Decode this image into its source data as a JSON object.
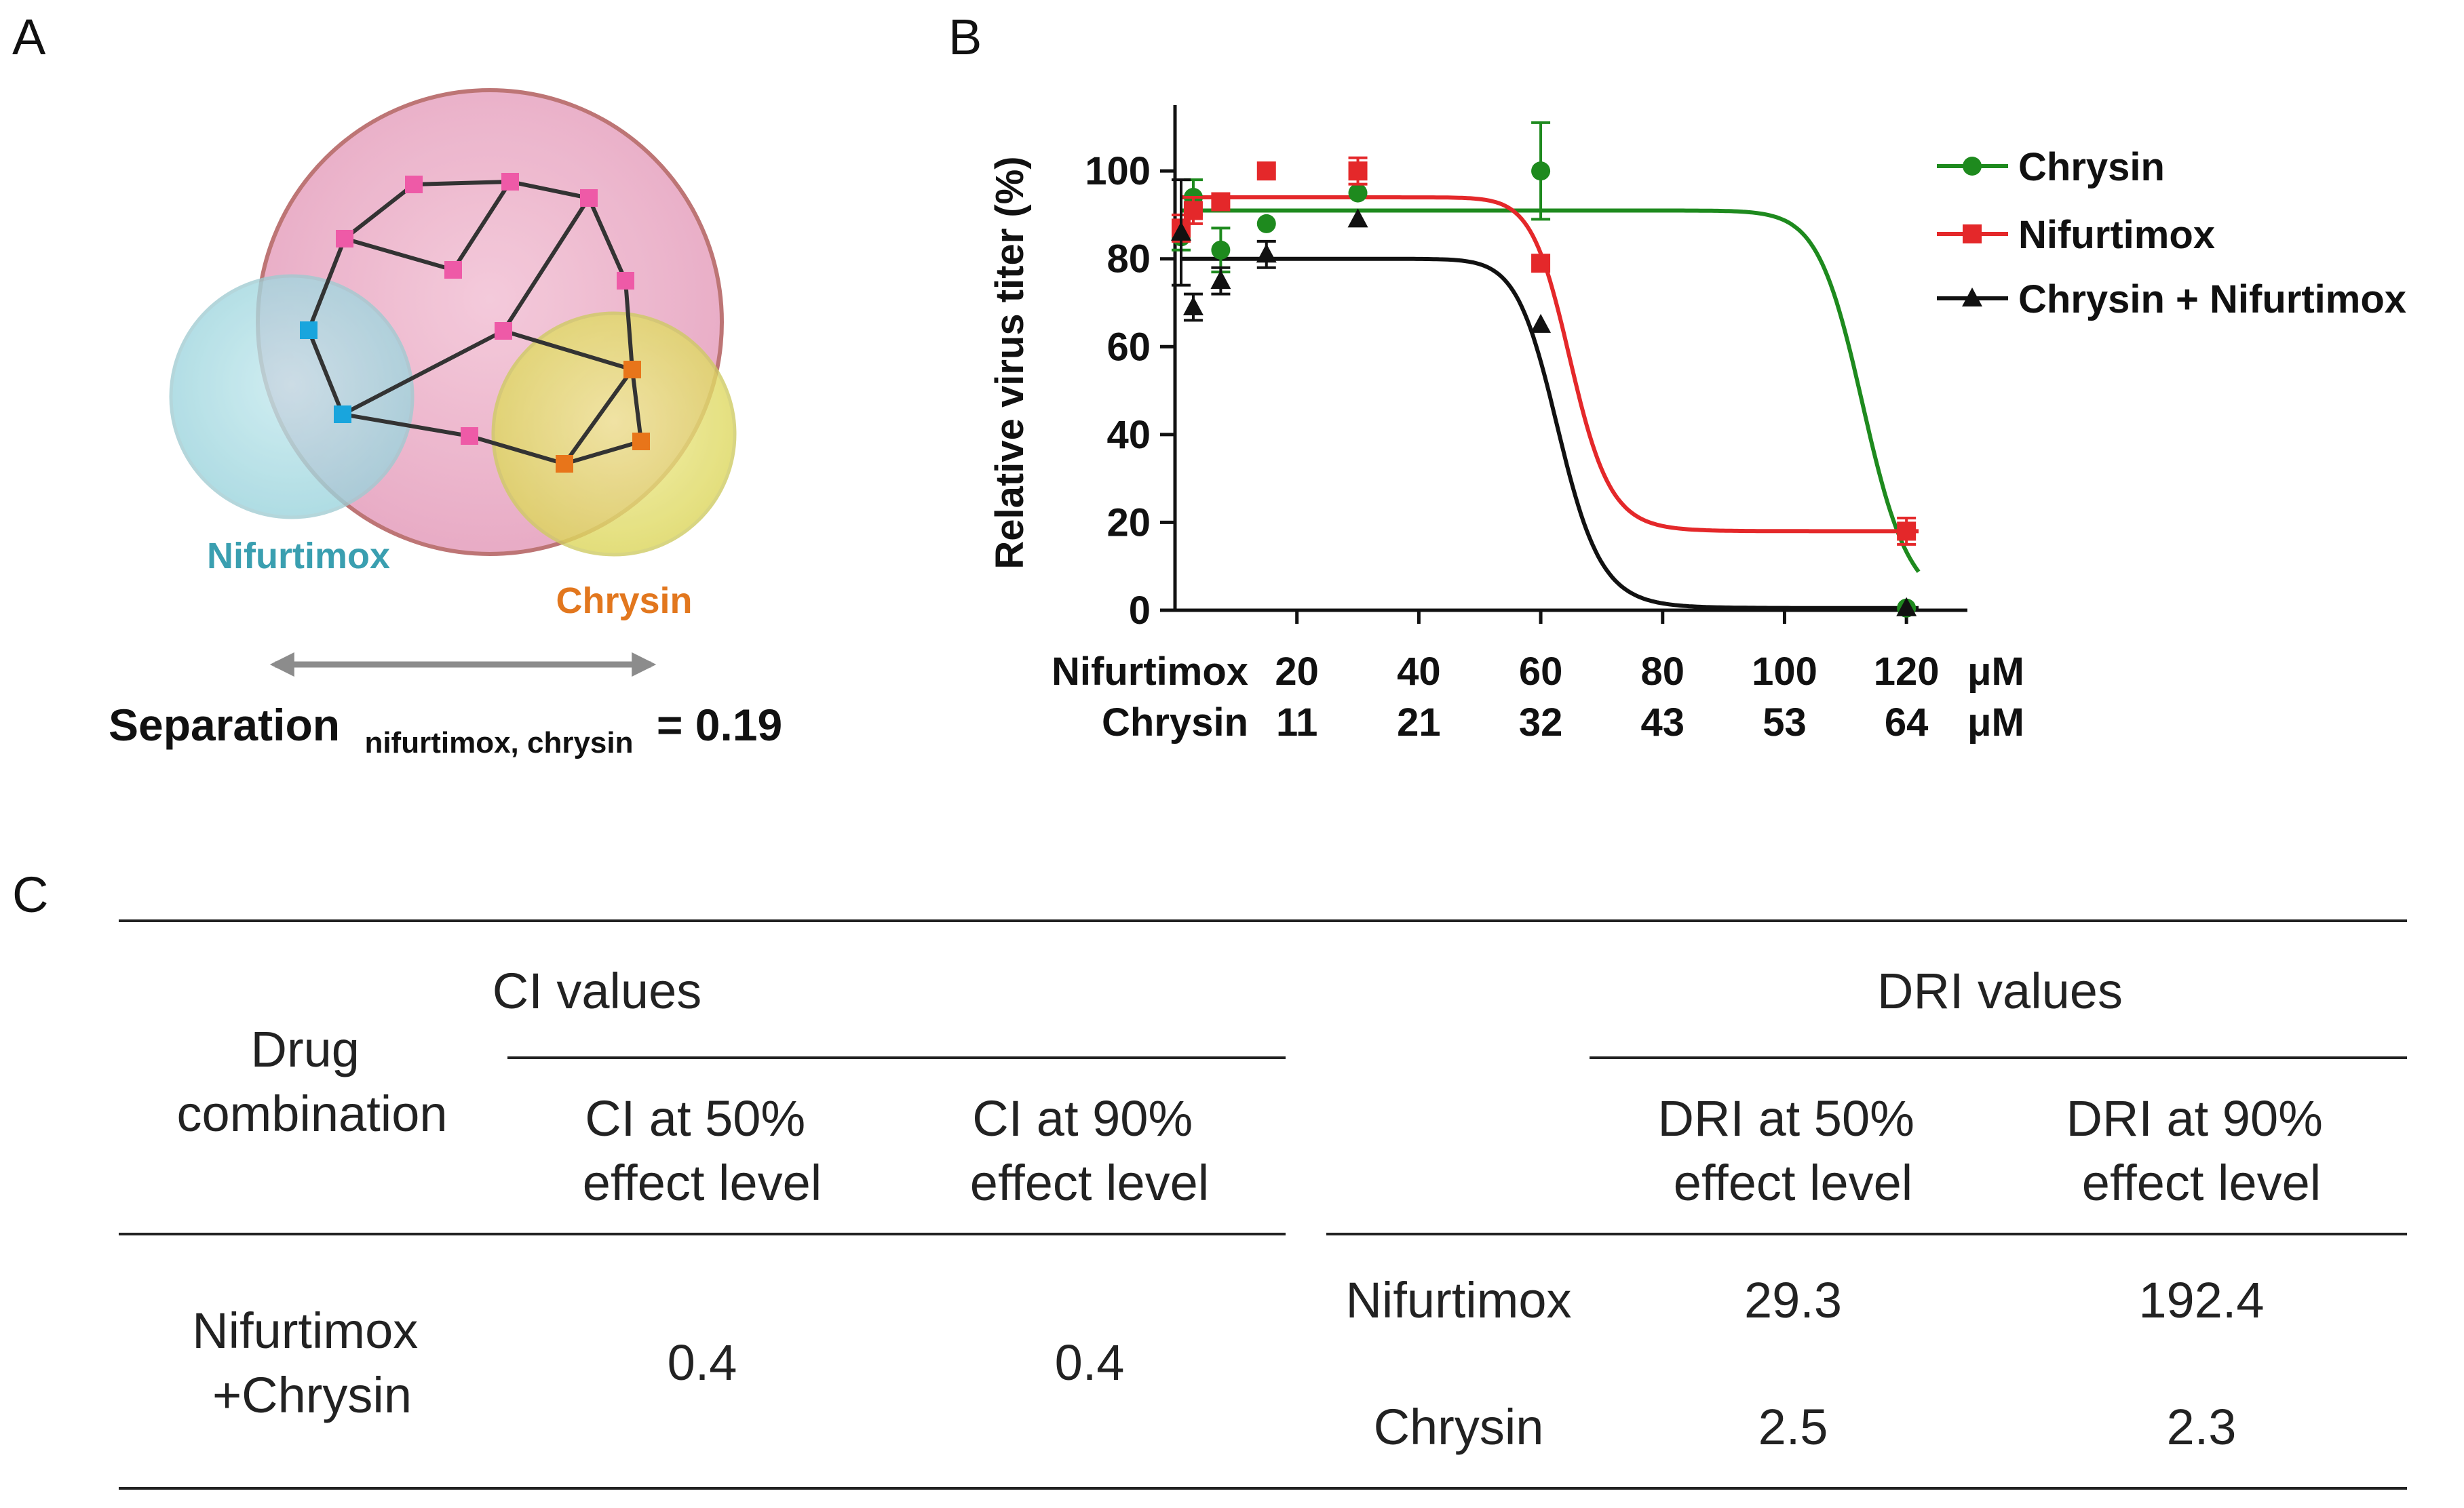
{
  "panels": {
    "a": "A",
    "b": "B",
    "c": "C"
  },
  "network": {
    "drug1": "Nifurtimox",
    "drug2": "Chrysin",
    "separation_label": "Separation",
    "separation_subscript": "nifurtimox, chrysin",
    "separation_value": "= 0.19",
    "colors": {
      "large_circle": "#e9a9c6",
      "nifurtimox_circle": "#a9dce3",
      "chrysin_circle": "#e7e36d",
      "pink_node": "#ee5aa7",
      "blue_node": "#19a5dd",
      "orange_node": "#e8751a",
      "nifurtimox_text": "#3a9fb0",
      "chrysin_text": "#e2771e",
      "arrow": "#8c8c8c"
    }
  },
  "chart_data": {
    "type": "line",
    "ylabel": "Relative virus titer (%)",
    "ylim": [
      0,
      115
    ],
    "yticks": [
      "0",
      "20",
      "40",
      "60",
      "80",
      "100"
    ],
    "x_rows": [
      {
        "label": "Nifurtimox",
        "ticks": [
          "20",
          "40",
          "60",
          "80",
          "100",
          "120"
        ],
        "unit": "μM"
      },
      {
        "label": "Chrysin",
        "ticks": [
          "11",
          "21",
          "32",
          "43",
          "53",
          "64"
        ],
        "unit": "μM"
      }
    ],
    "x_tick_positions": [
      20,
      40,
      60,
      80,
      100,
      120
    ],
    "xlim": [
      0,
      130
    ],
    "legend_position": "top-right",
    "series": [
      {
        "name": "Chrysin",
        "color": "#1e8a1e",
        "marker": "circle",
        "points": [
          {
            "x": 1,
            "y": 85,
            "err": 3
          },
          {
            "x": 3,
            "y": 94,
            "err": 4
          },
          {
            "x": 7.5,
            "y": 82,
            "err": 5
          },
          {
            "x": 15,
            "y": 88,
            "err": 0
          },
          {
            "x": 30,
            "y": 95,
            "err": 0
          },
          {
            "x": 60,
            "y": 100,
            "err": 11
          },
          {
            "x": 120,
            "y": 0.5,
            "err": 0
          }
        ],
        "fit": {
          "top": 91,
          "bottom": 0.5,
          "ec50": 113,
          "hill": 30
        }
      },
      {
        "name": "Nifurtimox",
        "color": "#e4282a",
        "marker": "square",
        "points": [
          {
            "x": 1,
            "y": 87,
            "err": 3
          },
          {
            "x": 3,
            "y": 91,
            "err": 3
          },
          {
            "x": 7.5,
            "y": 93,
            "err": 0
          },
          {
            "x": 15,
            "y": 100,
            "err": 0
          },
          {
            "x": 30,
            "y": 100,
            "err": 3
          },
          {
            "x": 60,
            "y": 79,
            "err": 0
          },
          {
            "x": 120,
            "y": 18,
            "err": 3
          }
        ],
        "fit": {
          "top": 94,
          "bottom": 18,
          "ec50": 65,
          "hill": 20
        }
      },
      {
        "name": "Chrysin + Nifurtimox",
        "color": "#111111",
        "marker": "triangle",
        "points": [
          {
            "x": 1,
            "y": 86,
            "err": 12
          },
          {
            "x": 3,
            "y": 69,
            "err": 3
          },
          {
            "x": 7.5,
            "y": 75,
            "err": 3
          },
          {
            "x": 15,
            "y": 81,
            "err": 3
          },
          {
            "x": 30,
            "y": 89,
            "err": 0
          },
          {
            "x": 60,
            "y": 65,
            "err": 0
          },
          {
            "x": 120,
            "y": 0.5,
            "err": 0
          }
        ],
        "fit": {
          "top": 80,
          "bottom": 0.5,
          "ec50": 63,
          "hill": 18
        }
      }
    ]
  },
  "table": {
    "header_drug": "Drug combination",
    "header_drug_l1": "Drug",
    "header_drug_l2": "combination",
    "ci_group": "CI values",
    "dri_group": "DRI values",
    "ci50": [
      "CI at 50%",
      "effect level"
    ],
    "ci90": [
      "CI at 90%",
      "effect level"
    ],
    "dri50": [
      "DRI at 50%",
      "effect level"
    ],
    "dri90": [
      "DRI at 90%",
      "effect level"
    ],
    "combo": [
      "Nifurtimox",
      "+Chrysin"
    ],
    "ci50_value": "0.4",
    "ci90_value": "0.4",
    "dri_rows": [
      {
        "drug": "Nifurtimox",
        "dri50": "29.3",
        "dri90": "192.4"
      },
      {
        "drug": "Chrysin",
        "dri50": "2.5",
        "dri90": "2.3"
      }
    ]
  }
}
